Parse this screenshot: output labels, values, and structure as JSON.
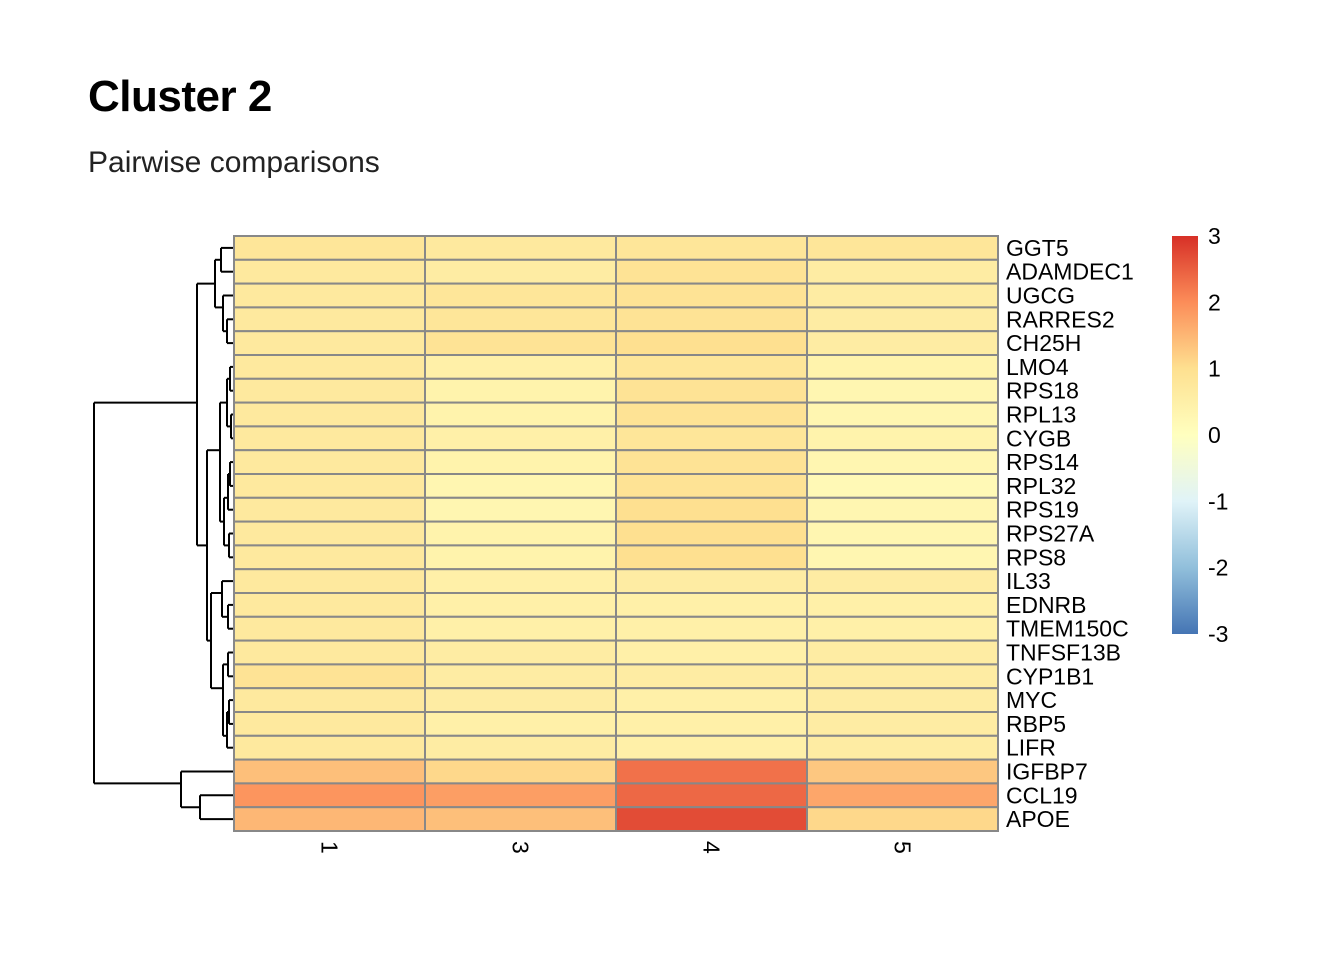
{
  "title": "Cluster 2",
  "subtitle": "Pairwise comparisons",
  "chart_data": {
    "type": "heatmap",
    "rows": [
      "GGT5",
      "ADAMDEC1",
      "UGCG",
      "RARRES2",
      "CH25H",
      "LMO4",
      "RPS18",
      "RPL13",
      "CYGB",
      "RPS14",
      "RPL32",
      "RPS19",
      "RPS27A",
      "RPS8",
      "IL33",
      "EDNRB",
      "TMEM150C",
      "TNFSF13B",
      "CYP1B1",
      "MYC",
      "RBP5",
      "LIFR",
      "IGFBP7",
      "CCL19",
      "APOE"
    ],
    "columns": [
      "1",
      "3",
      "4",
      "5"
    ],
    "values": [
      [
        0.8,
        0.7,
        0.8,
        0.8
      ],
      [
        0.7,
        0.6,
        0.9,
        0.6
      ],
      [
        0.7,
        0.8,
        0.9,
        0.6
      ],
      [
        0.7,
        0.8,
        0.9,
        0.6
      ],
      [
        0.7,
        0.9,
        1.0,
        0.6
      ],
      [
        0.7,
        0.5,
        0.8,
        0.4
      ],
      [
        0.7,
        0.4,
        0.9,
        0.3
      ],
      [
        0.7,
        0.4,
        0.9,
        0.3
      ],
      [
        0.7,
        0.5,
        0.8,
        0.4
      ],
      [
        0.7,
        0.4,
        0.9,
        0.3
      ],
      [
        0.7,
        0.3,
        0.9,
        0.2
      ],
      [
        0.7,
        0.3,
        1.0,
        0.3
      ],
      [
        0.7,
        0.4,
        1.0,
        0.3
      ],
      [
        0.7,
        0.4,
        1.0,
        0.3
      ],
      [
        0.7,
        0.5,
        0.6,
        0.6
      ],
      [
        0.7,
        0.5,
        0.5,
        0.5
      ],
      [
        0.7,
        0.5,
        0.5,
        0.5
      ],
      [
        0.7,
        0.6,
        0.5,
        0.6
      ],
      [
        0.9,
        0.6,
        0.6,
        0.6
      ],
      [
        0.7,
        0.6,
        0.5,
        0.6
      ],
      [
        0.7,
        0.5,
        0.5,
        0.6
      ],
      [
        0.7,
        0.6,
        0.5,
        0.6
      ],
      [
        1.4,
        1.1,
        2.3,
        1.3
      ],
      [
        1.9,
        1.8,
        2.4,
        1.7
      ],
      [
        1.5,
        1.4,
        2.7,
        1.1
      ]
    ],
    "legend": {
      "min": -3,
      "max": 3,
      "ticks": [
        "3",
        "2",
        "1",
        "0",
        "-1",
        "-2",
        "-3"
      ]
    },
    "palette": [
      "#4575b4",
      "#91bfdb",
      "#e0f3f8",
      "#ffffbf",
      "#fee090",
      "#fc8d59",
      "#d73027"
    ],
    "grid_color": "#888888",
    "dendrogram": "rows"
  }
}
